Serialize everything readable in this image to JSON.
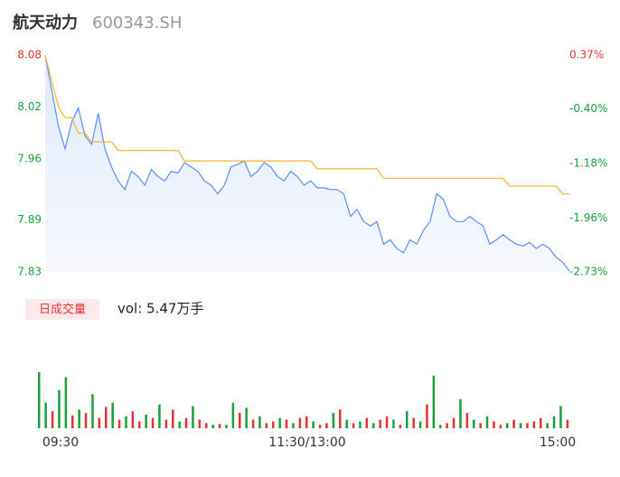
{
  "header": {
    "name": "航天动力",
    "code": "600343.SH"
  },
  "chart_data": [
    {
      "type": "line",
      "ylim": [
        7.83,
        8.08
      ],
      "yticks": [
        7.83,
        7.89,
        7.96,
        8.02,
        8.08
      ],
      "y2lim": [
        -2.73,
        0.37
      ],
      "y2ticks": [
        {
          "value": -2.73,
          "label": "-2.73%"
        },
        {
          "value": -1.96,
          "label": "-1.96%"
        },
        {
          "value": -1.18,
          "label": "-1.18%"
        },
        {
          "value": -0.4,
          "label": "-0.40%"
        },
        {
          "value": 0.37,
          "label": "0.37%"
        }
      ],
      "x_labels": [
        "09:30",
        "11:30/13:00",
        "15:00"
      ],
      "series": [
        {
          "color": "#5b8ff9",
          "values": [
            8.08,
            8.039,
            7.998,
            7.972,
            8.003,
            8.019,
            7.987,
            7.977,
            8.013,
            7.972,
            7.951,
            7.935,
            7.925,
            7.946,
            7.94,
            7.93,
            7.948,
            7.94,
            7.935,
            7.946,
            7.944,
            7.956,
            7.951,
            7.946,
            7.935,
            7.93,
            7.92,
            7.93,
            7.951,
            7.954,
            7.958,
            7.94,
            7.946,
            7.956,
            7.951,
            7.94,
            7.935,
            7.946,
            7.94,
            7.93,
            7.935,
            7.927,
            7.927,
            7.925,
            7.925,
            7.92,
            7.894,
            7.902,
            7.888,
            7.883,
            7.888,
            7.862,
            7.867,
            7.857,
            7.852,
            7.867,
            7.862,
            7.878,
            7.888,
            7.92,
            7.914,
            7.894,
            7.888,
            7.888,
            7.894,
            7.888,
            7.883,
            7.862,
            7.867,
            7.873,
            7.867,
            7.862,
            7.86,
            7.864,
            7.857,
            7.862,
            7.857,
            7.847,
            7.841,
            7.831
          ]
        },
        {
          "color": "#f5b82e",
          "values": [
            8.08,
            8.05,
            8.02,
            8.008,
            8.008,
            7.99,
            7.99,
            7.98,
            7.98,
            7.98,
            7.98,
            7.97,
            7.97,
            7.97,
            7.97,
            7.97,
            7.97,
            7.97,
            7.97,
            7.97,
            7.97,
            7.958,
            7.958,
            7.958,
            7.958,
            7.958,
            7.958,
            7.958,
            7.958,
            7.958,
            7.958,
            7.958,
            7.958,
            7.958,
            7.958,
            7.958,
            7.958,
            7.958,
            7.958,
            7.958,
            7.958,
            7.949,
            7.949,
            7.949,
            7.949,
            7.949,
            7.949,
            7.949,
            7.949,
            7.949,
            7.949,
            7.938,
            7.938,
            7.938,
            7.938,
            7.938,
            7.938,
            7.938,
            7.938,
            7.938,
            7.938,
            7.938,
            7.938,
            7.938,
            7.938,
            7.938,
            7.938,
            7.938,
            7.938,
            7.938,
            7.929,
            7.929,
            7.929,
            7.929,
            7.929,
            7.929,
            7.929,
            7.929,
            7.92,
            7.92
          ]
        }
      ]
    },
    {
      "type": "volume",
      "legend": "日成交量",
      "summary": "vol: 5.47万手",
      "ylim": [
        0,
        100
      ],
      "values": [
        66,
        30,
        20,
        45,
        60,
        15,
        22,
        18,
        40,
        12,
        25,
        30,
        10,
        14,
        20,
        8,
        16,
        12,
        28,
        10,
        22,
        8,
        12,
        26,
        10,
        6,
        4,
        5,
        4,
        30,
        18,
        24,
        10,
        14,
        6,
        8,
        12,
        10,
        6,
        12,
        14,
        8,
        4,
        6,
        18,
        22,
        10,
        6,
        8,
        12,
        6,
        10,
        14,
        10,
        4,
        20,
        12,
        8,
        28,
        62,
        4,
        6,
        12,
        34,
        18,
        10,
        6,
        14,
        8,
        4,
        6,
        10,
        6,
        6,
        8,
        12,
        6,
        14,
        26,
        10
      ],
      "colors": [
        "#19a03a",
        "#19a03a",
        "#e63232",
        "#19a03a",
        "#19a03a",
        "#e63232",
        "#19a03a",
        "#e63232",
        "#19a03a",
        "#e63232",
        "#e63232",
        "#19a03a",
        "#e63232",
        "#19a03a",
        "#e63232",
        "#e63232",
        "#19a03a",
        "#e63232",
        "#19a03a",
        "#e63232",
        "#e63232",
        "#19a03a",
        "#e63232",
        "#19a03a",
        "#e63232",
        "#e63232",
        "#19a03a",
        "#e63232",
        "#19a03a",
        "#19a03a",
        "#e63232",
        "#19a03a",
        "#e63232",
        "#19a03a",
        "#e63232",
        "#e63232",
        "#19a03a",
        "#e63232",
        "#19a03a",
        "#e63232",
        "#e63232",
        "#19a03a",
        "#e63232",
        "#e63232",
        "#19a03a",
        "#e63232",
        "#19a03a",
        "#e63232",
        "#19a03a",
        "#e63232",
        "#19a03a",
        "#e63232",
        "#e63232",
        "#19a03a",
        "#e63232",
        "#19a03a",
        "#e63232",
        "#19a03a",
        "#e63232",
        "#19a03a",
        "#19a03a",
        "#e63232",
        "#e63232",
        "#19a03a",
        "#e63232",
        "#19a03a",
        "#e63232",
        "#19a03a",
        "#e63232",
        "#e63232",
        "#19a03a",
        "#e63232",
        "#19a03a",
        "#e63232",
        "#e63232",
        "#e63232",
        "#19a03a",
        "#19a03a",
        "#19a03a",
        "#e63232"
      ]
    }
  ]
}
